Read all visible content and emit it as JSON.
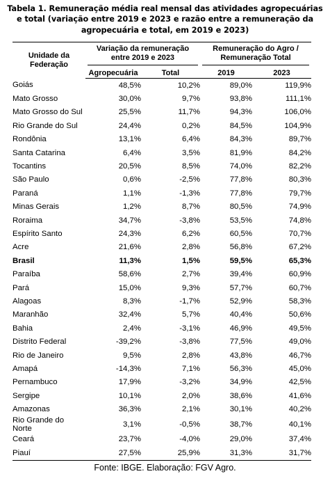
{
  "title": "Tabela 1. Remuneração média real mensal das atividades agropecuárias e total (variação entre 2019 e 2023 e razão entre a remuneração da agropecuária e total, em 2019 e 2023)",
  "headers": {
    "uf": "Unidade da Federação",
    "variation_group": "Variação da remuneração entre 2019 e 2023",
    "ratio_group": "Remuneração do Agro / Remuneração Total",
    "agro": "Agropecuária",
    "total": "Total",
    "y2019": "2019",
    "y2023": "2023"
  },
  "rows": [
    {
      "uf": "Goiás",
      "agro": "48,5%",
      "total": "10,2%",
      "y2019": "89,0%",
      "y2023": "119,9%",
      "bold": false
    },
    {
      "uf": "Mato Grosso",
      "agro": "30,0%",
      "total": "9,7%",
      "y2019": "93,8%",
      "y2023": "111,1%",
      "bold": false
    },
    {
      "uf": "Mato Grosso do Sul",
      "agro": "25,5%",
      "total": "11,7%",
      "y2019": "94,3%",
      "y2023": "106,0%",
      "bold": false
    },
    {
      "uf": "Rio Grande do Sul",
      "agro": "24,4%",
      "total": "0,2%",
      "y2019": "84,5%",
      "y2023": "104,9%",
      "bold": false
    },
    {
      "uf": "Rondônia",
      "agro": "13,1%",
      "total": "6,4%",
      "y2019": "84,3%",
      "y2023": "89,7%",
      "bold": false
    },
    {
      "uf": "Santa Catarina",
      "agro": "6,4%",
      "total": "3,5%",
      "y2019": "81,9%",
      "y2023": "84,2%",
      "bold": false
    },
    {
      "uf": "Tocantins",
      "agro": "20,5%",
      "total": "8,5%",
      "y2019": "74,0%",
      "y2023": "82,2%",
      "bold": false
    },
    {
      "uf": "São Paulo",
      "agro": "0,6%",
      "total": "-2,5%",
      "y2019": "77,8%",
      "y2023": "80,3%",
      "bold": false
    },
    {
      "uf": "Paraná",
      "agro": "1,1%",
      "total": "-1,3%",
      "y2019": "77,8%",
      "y2023": "79,7%",
      "bold": false
    },
    {
      "uf": "Minas Gerais",
      "agro": "1,2%",
      "total": "8,7%",
      "y2019": "80,5%",
      "y2023": "74,9%",
      "bold": false
    },
    {
      "uf": "Roraima",
      "agro": "34,7%",
      "total": "-3,8%",
      "y2019": "53,5%",
      "y2023": "74,8%",
      "bold": false
    },
    {
      "uf": "Espírito Santo",
      "agro": "24,3%",
      "total": "6,2%",
      "y2019": "60,5%",
      "y2023": "70,7%",
      "bold": false
    },
    {
      "uf": "Acre",
      "agro": "21,6%",
      "total": "2,8%",
      "y2019": "56,8%",
      "y2023": "67,2%",
      "bold": false
    },
    {
      "uf": "Brasil",
      "agro": "11,3%",
      "total": "1,5%",
      "y2019": "59,5%",
      "y2023": "65,3%",
      "bold": true
    },
    {
      "uf": "Paraíba",
      "agro": "58,6%",
      "total": "2,7%",
      "y2019": "39,4%",
      "y2023": "60,9%",
      "bold": false
    },
    {
      "uf": "Pará",
      "agro": "15,0%",
      "total": "9,3%",
      "y2019": "57,7%",
      "y2023": "60,7%",
      "bold": false
    },
    {
      "uf": "Alagoas",
      "agro": "8,3%",
      "total": "-1,7%",
      "y2019": "52,9%",
      "y2023": "58,3%",
      "bold": false
    },
    {
      "uf": "Maranhão",
      "agro": "32,4%",
      "total": "5,7%",
      "y2019": "40,4%",
      "y2023": "50,6%",
      "bold": false
    },
    {
      "uf": "Bahia",
      "agro": "2,4%",
      "total": "-3,1%",
      "y2019": "46,9%",
      "y2023": "49,5%",
      "bold": false
    },
    {
      "uf": "Distrito Federal",
      "agro": "-39,2%",
      "total": "-3,8%",
      "y2019": "77,5%",
      "y2023": "49,0%",
      "bold": false
    },
    {
      "uf": "Rio de Janeiro",
      "agro": "9,5%",
      "total": "2,8%",
      "y2019": "43,8%",
      "y2023": "46,7%",
      "bold": false
    },
    {
      "uf": "Amapá",
      "agro": "-14,3%",
      "total": "7,1%",
      "y2019": "56,3%",
      "y2023": "45,0%",
      "bold": false
    },
    {
      "uf": "Pernambuco",
      "agro": "17,9%",
      "total": "-3,2%",
      "y2019": "34,9%",
      "y2023": "42,5%",
      "bold": false
    },
    {
      "uf": "Sergipe",
      "agro": "10,1%",
      "total": "2,0%",
      "y2019": "38,6%",
      "y2023": "41,6%",
      "bold": false
    },
    {
      "uf": "Amazonas",
      "agro": "36,3%",
      "total": "2,1%",
      "y2019": "30,1%",
      "y2023": "40,2%",
      "bold": false
    },
    {
      "uf": "Rio Grande do Norte",
      "agro": "3,1%",
      "total": "-0,5%",
      "y2019": "38,7%",
      "y2023": "40,1%",
      "bold": false
    },
    {
      "uf": "Ceará",
      "agro": "23,7%",
      "total": "-4,0%",
      "y2019": "29,0%",
      "y2023": "37,4%",
      "bold": false
    },
    {
      "uf": "Piauí",
      "agro": "27,5%",
      "total": "25,9%",
      "y2019": "31,3%",
      "y2023": "31,7%",
      "bold": false
    }
  ],
  "source": "Fonte: IBGE. Elaboração: FGV Agro."
}
